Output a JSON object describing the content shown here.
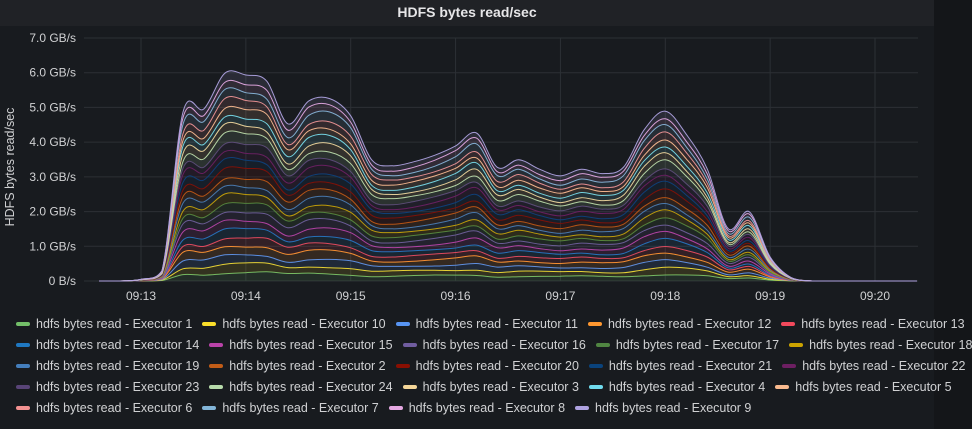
{
  "panel": {
    "title": "HDFS bytes read/sec"
  },
  "chart_data": {
    "type": "area",
    "stacked": true,
    "title": "HDFS bytes read/sec",
    "ylabel": "HDFS bytes read/sec",
    "xlabel": "",
    "y_unit": "GB/s",
    "ylim": [
      0,
      7
    ],
    "y_ticks": [
      0,
      1,
      2,
      3,
      4,
      5,
      6,
      7
    ],
    "y_tick_labels": [
      "0 B/s",
      "1.0 GB/s",
      "2.0 GB/s",
      "3.0 GB/s",
      "4.0 GB/s",
      "5.0 GB/s",
      "6.0 GB/s",
      "7.0 GB/s"
    ],
    "x_tick_labels": [
      "09:13",
      "09:14",
      "09:15",
      "09:16",
      "09:17",
      "09:18",
      "09:19",
      "09:20"
    ],
    "grid": true,
    "legend_position": "bottom",
    "x": [
      "09:12:36",
      "09:12:48",
      "09:13:00",
      "09:13:12",
      "09:13:24",
      "09:13:36",
      "09:13:48",
      "09:14:00",
      "09:14:12",
      "09:14:24",
      "09:14:36",
      "09:14:48",
      "09:15:00",
      "09:15:12",
      "09:15:24",
      "09:15:36",
      "09:15:48",
      "09:16:00",
      "09:16:12",
      "09:16:24",
      "09:16:36",
      "09:16:48",
      "09:17:00",
      "09:17:12",
      "09:17:24",
      "09:17:36",
      "09:17:48",
      "09:18:00",
      "09:18:12",
      "09:18:24",
      "09:18:36",
      "09:18:48",
      "09:19:00",
      "09:19:12",
      "09:19:24",
      "09:19:36",
      "09:19:48",
      "09:20:00",
      "09:20:12",
      "09:20:24"
    ],
    "total": [
      0,
      0,
      0.05,
      0.3,
      4.9,
      5.0,
      6.0,
      5.9,
      5.7,
      4.5,
      5.2,
      5.3,
      4.8,
      3.5,
      3.3,
      3.4,
      3.6,
      3.9,
      4.3,
      3.3,
      3.5,
      3.2,
      3.0,
      3.2,
      3.1,
      3.3,
      4.4,
      4.9,
      4.2,
      3.2,
      1.5,
      2.0,
      0.7,
      0.1,
      0,
      0,
      0,
      0,
      0,
      0
    ],
    "series": [
      {
        "name": "hdfs bytes read - Executor 1",
        "color": "#73bf69",
        "share": 0.04
      },
      {
        "name": "hdfs bytes read - Executor 10",
        "color": "#fade2a",
        "share": 0.04
      },
      {
        "name": "hdfs bytes read - Executor 11",
        "color": "#5794f2",
        "share": 0.04
      },
      {
        "name": "hdfs bytes read - Executor 12",
        "color": "#ff9830",
        "share": 0.045
      },
      {
        "name": "hdfs bytes read - Executor 13",
        "color": "#f2495c",
        "share": 0.04
      },
      {
        "name": "hdfs bytes read - Executor 14",
        "color": "#1f78c1",
        "share": 0.04
      },
      {
        "name": "hdfs bytes read - Executor 15",
        "color": "#ba43a9",
        "share": 0.04
      },
      {
        "name": "hdfs bytes read - Executor 16",
        "color": "#705da0",
        "share": 0.045
      },
      {
        "name": "hdfs bytes read - Executor 17",
        "color": "#508642",
        "share": 0.04
      },
      {
        "name": "hdfs bytes read - Executor 18",
        "color": "#cca300",
        "share": 0.04
      },
      {
        "name": "hdfs bytes read - Executor 19",
        "color": "#447ebc",
        "share": 0.04
      },
      {
        "name": "hdfs bytes read - Executor 2",
        "color": "#c15c17",
        "share": 0.04
      },
      {
        "name": "hdfs bytes read - Executor 20",
        "color": "#890f02",
        "share": 0.045
      },
      {
        "name": "hdfs bytes read - Executor 21",
        "color": "#0a437c",
        "share": 0.04
      },
      {
        "name": "hdfs bytes read - Executor 22",
        "color": "#6d1f62",
        "share": 0.04
      },
      {
        "name": "hdfs bytes read - Executor 23",
        "color": "#584477",
        "share": 0.04
      },
      {
        "name": "hdfs bytes read - Executor 24",
        "color": "#b7dbab",
        "share": 0.045
      },
      {
        "name": "hdfs bytes read - Executor 3",
        "color": "#f4d598",
        "share": 0.04
      },
      {
        "name": "hdfs bytes read - Executor 4",
        "color": "#70dbed",
        "share": 0.04
      },
      {
        "name": "hdfs bytes read - Executor 5",
        "color": "#f9ba8f",
        "share": 0.04
      },
      {
        "name": "hdfs bytes read - Executor 6",
        "color": "#f29191",
        "share": 0.04
      },
      {
        "name": "hdfs bytes read - Executor 7",
        "color": "#82b5d8",
        "share": 0.045
      },
      {
        "name": "hdfs bytes read - Executor 8",
        "color": "#e5a8e2",
        "share": 0.04
      },
      {
        "name": "hdfs bytes read - Executor 9",
        "color": "#aea2e0",
        "share": 0.04
      }
    ]
  }
}
